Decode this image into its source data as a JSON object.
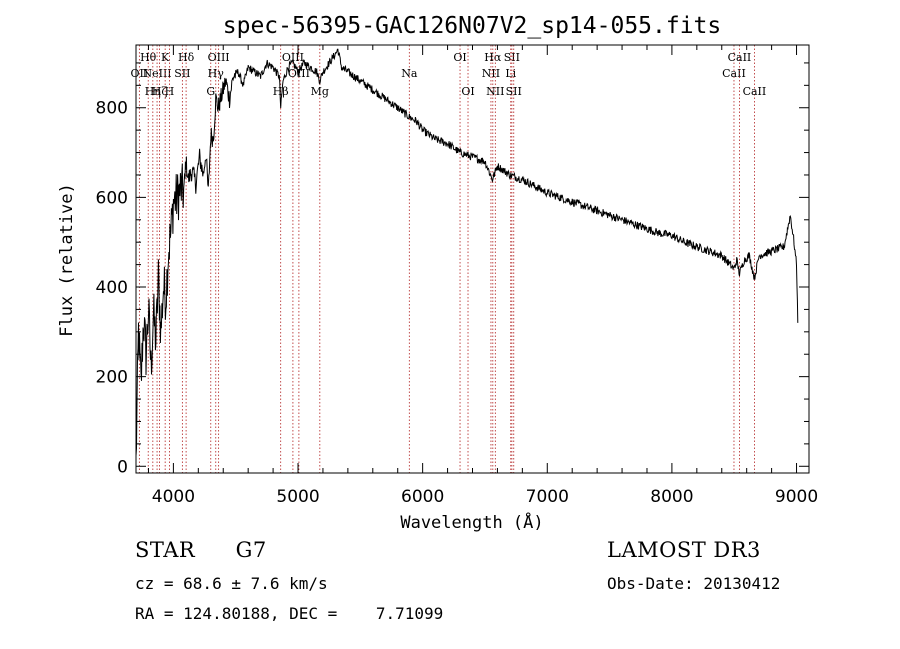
{
  "chart_data": {
    "type": "line",
    "title": "spec-56395-GAC126N07V2_sp14-055.fits",
    "xlabel": "Wavelength (Å)",
    "ylabel": "Flux (relative)",
    "xlim": [
      3700,
      9100
    ],
    "ylim": [
      -15,
      940
    ],
    "xticks": [
      4000,
      5000,
      6000,
      7000,
      8000,
      9000
    ],
    "yticks": [
      0,
      200,
      400,
      600,
      800
    ],
    "series": [
      {
        "name": "spectrum",
        "x": [
          3700,
          3720,
          3740,
          3760,
          3780,
          3800,
          3820,
          3840,
          3860,
          3880,
          3900,
          3920,
          3940,
          3960,
          3980,
          4000,
          4030,
          4060,
          4090,
          4100,
          4120,
          4150,
          4180,
          4210,
          4240,
          4260,
          4280,
          4300,
          4320,
          4340,
          4360,
          4390,
          4420,
          4450,
          4480,
          4520,
          4560,
          4600,
          4650,
          4700,
          4750,
          4800,
          4850,
          4861,
          4880,
          4920,
          4960,
          5000,
          5050,
          5100,
          5150,
          5175,
          5200,
          5250,
          5300,
          5320,
          5350,
          5400,
          5450,
          5500,
          5600,
          5700,
          5800,
          5890,
          5950,
          6000,
          6100,
          6200,
          6300,
          6400,
          6500,
          6560,
          6600,
          6700,
          6800,
          6900,
          7000,
          7100,
          7200,
          7300,
          7400,
          7500,
          7600,
          7700,
          7800,
          7900,
          8000,
          8100,
          8200,
          8300,
          8400,
          8498,
          8520,
          8542,
          8580,
          8620,
          8662,
          8700,
          8800,
          8900,
          8950,
          8980,
          9000,
          9010
        ],
        "y": [
          5,
          300,
          180,
          330,
          250,
          350,
          220,
          340,
          280,
          420,
          300,
          400,
          380,
          480,
          520,
          590,
          600,
          620,
          610,
          680,
          640,
          660,
          630,
          690,
          650,
          700,
          610,
          740,
          730,
          820,
          800,
          830,
          860,
          820,
          870,
          880,
          850,
          890,
          880,
          870,
          900,
          890,
          870,
          800,
          860,
          890,
          900,
          880,
          900,
          890,
          880,
          860,
          880,
          900,
          920,
          930,
          890,
          880,
          870,
          860,
          840,
          820,
          800,
          780,
          770,
          750,
          730,
          720,
          700,
          690,
          680,
          640,
          670,
          650,
          640,
          625,
          610,
          600,
          590,
          580,
          570,
          560,
          550,
          540,
          530,
          520,
          515,
          500,
          490,
          480,
          470,
          440,
          460,
          430,
          460,
          470,
          420,
          470,
          480,
          490,
          560,
          500,
          450,
          320
        ]
      }
    ],
    "lines": [
      {
        "lambda": 3727,
        "label": "OII",
        "row": 2
      },
      {
        "lambda": 3798,
        "label": "Hθ",
        "row": 1
      },
      {
        "lambda": 3835,
        "label": "Hη",
        "row": 3
      },
      {
        "lambda": 3869,
        "label": "NeIII",
        "row": 2
      },
      {
        "lambda": 3889,
        "label": "Hζ",
        "row": 3
      },
      {
        "lambda": 3934,
        "label": "K",
        "row": 1
      },
      {
        "lambda": 3968,
        "label": "H",
        "row": 3
      },
      {
        "lambda": 4072,
        "label": "SII",
        "row": 2
      },
      {
        "lambda": 4102,
        "label": "Hδ",
        "row": 1
      },
      {
        "lambda": 4300,
        "label": "G",
        "row": 3
      },
      {
        "lambda": 4340,
        "label": "Hγ",
        "row": 2
      },
      {
        "lambda": 4363,
        "label": "OIII",
        "row": 1
      },
      {
        "lambda": 4861,
        "label": "Hβ",
        "row": 3
      },
      {
        "lambda": 4959,
        "label": "OIII",
        "row": 1
      },
      {
        "lambda": 5007,
        "label": "OIII",
        "row": 2
      },
      {
        "lambda": 5175,
        "label": "Mg",
        "row": 3
      },
      {
        "lambda": 5893,
        "label": "Na",
        "row": 2
      },
      {
        "lambda": 6300,
        "label": "OI",
        "row": 1
      },
      {
        "lambda": 6364,
        "label": "OI",
        "row": 3
      },
      {
        "lambda": 6548,
        "label": "NII",
        "row": 2
      },
      {
        "lambda": 6563,
        "label": "Hα",
        "row": 1
      },
      {
        "lambda": 6583,
        "label": "NII",
        "row": 3
      },
      {
        "lambda": 6707,
        "label": "Li",
        "row": 2
      },
      {
        "lambda": 6716,
        "label": "SII",
        "row": 1
      },
      {
        "lambda": 6731,
        "label": "SII",
        "row": 3
      },
      {
        "lambda": 8498,
        "label": "CaII",
        "row": 2
      },
      {
        "lambda": 8542,
        "label": "CaII",
        "row": 1
      },
      {
        "lambda": 8662,
        "label": "CaII",
        "row": 3
      }
    ]
  },
  "info": {
    "class": "STAR",
    "subclass": "G7",
    "survey": "LAMOST DR3",
    "cz": "cz = 68.6 ± 7.6 km/s",
    "obsdate": "Obs-Date: 20130412",
    "radec": "RA = 124.80188, DEC =    7.71099"
  },
  "colors": {
    "spectrum": "#000000",
    "line_markers": "#b22222",
    "axes": "#000000"
  }
}
